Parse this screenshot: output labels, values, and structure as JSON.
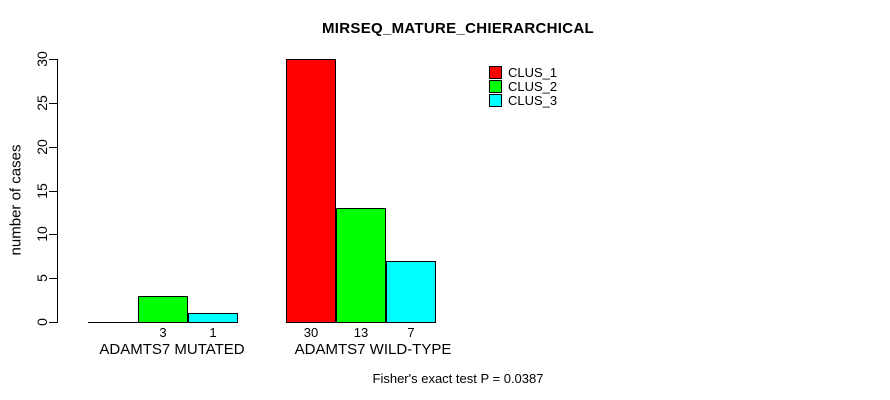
{
  "title": "MIRSEQ_MATURE_CHIERARCHICAL",
  "footer": "Fisher's exact test P = 0.0387",
  "chart_data": {
    "type": "bar",
    "title": "MIRSEQ_MATURE_CHIERARCHICAL",
    "categories": [
      "ADAMTS7 MUTATED",
      "ADAMTS7 WILD-TYPE"
    ],
    "series": [
      {
        "name": "CLUS_1",
        "color": "#FF0000",
        "values": [
          0,
          30
        ]
      },
      {
        "name": "CLUS_2",
        "color": "#00FF00",
        "values": [
          3,
          13
        ]
      },
      {
        "name": "CLUS_3",
        "color": "#00FFFF",
        "values": [
          1,
          7
        ]
      }
    ],
    "bar_value_labels": [
      [
        "",
        "3",
        "1"
      ],
      [
        "30",
        "13",
        "7"
      ]
    ],
    "xlabel": "",
    "ylabel": "number of cases",
    "ylim": [
      0,
      30
    ],
    "yticks": [
      0,
      5,
      10,
      15,
      20,
      25,
      30
    ],
    "grid": false,
    "legend_position": "top-right-of-plot",
    "annotation": "Fisher's exact test P = 0.0387"
  }
}
